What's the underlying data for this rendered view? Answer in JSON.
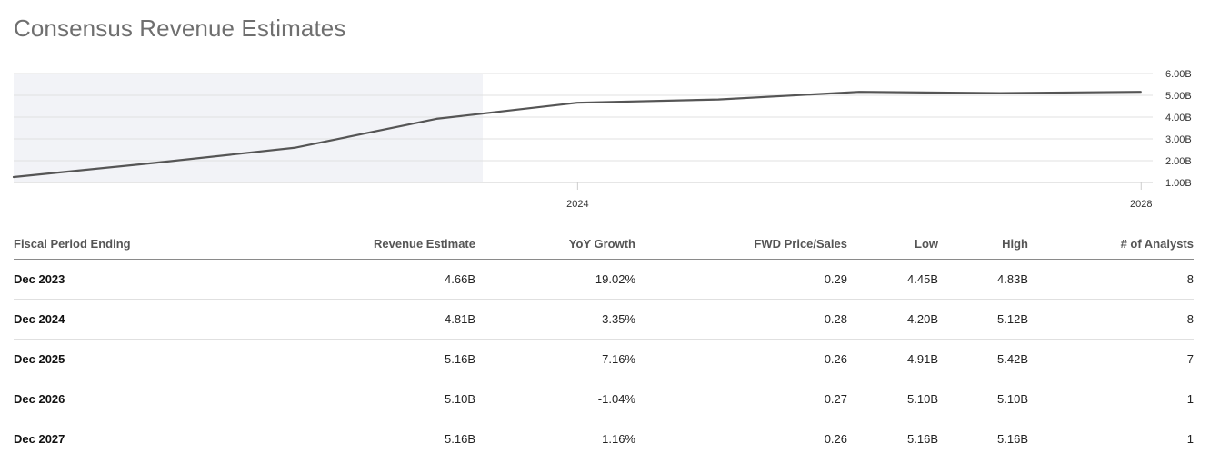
{
  "title": "Consensus Revenue Estimates",
  "chart_data": {
    "type": "line",
    "series": [
      {
        "x": [
          "2019-12-31",
          "2020-12-31",
          "2021-12-31",
          "2022-12-31",
          "2023-12-31",
          "2024-12-31",
          "2025-12-31",
          "2026-12-31",
          "2027-12-31"
        ],
        "values": [
          1.25,
          1.9,
          2.6,
          3.92,
          4.66,
          4.81,
          5.16,
          5.1,
          5.16
        ]
      }
    ],
    "historical_shading_end": "2023-04-30",
    "x_ticks": [
      {
        "date": "2024-01-01",
        "label": "2024"
      },
      {
        "date": "2028-01-01",
        "label": "2028"
      }
    ],
    "y_ticks": [
      1,
      2,
      3,
      4,
      5,
      6
    ],
    "y_tick_labels": [
      "1.00B",
      "2.00B",
      "3.00B",
      "4.00B",
      "5.00B",
      "6.00B"
    ],
    "ylim": [
      1,
      6
    ],
    "grid": true,
    "line_color": "#555555",
    "shade_color": "#f2f3f7",
    "grid_color": "#e0e0e0"
  },
  "table": {
    "headers": [
      "Fiscal Period Ending",
      "Revenue Estimate",
      "YoY Growth",
      "FWD Price/Sales",
      "Low",
      "High",
      "# of Analysts"
    ],
    "rows": [
      [
        "Dec 2023",
        "4.66B",
        "19.02%",
        "0.29",
        "4.45B",
        "4.83B",
        "8"
      ],
      [
        "Dec 2024",
        "4.81B",
        "3.35%",
        "0.28",
        "4.20B",
        "5.12B",
        "8"
      ],
      [
        "Dec 2025",
        "5.16B",
        "7.16%",
        "0.26",
        "4.91B",
        "5.42B",
        "7"
      ],
      [
        "Dec 2026",
        "5.10B",
        "-1.04%",
        "0.27",
        "5.10B",
        "5.10B",
        "1"
      ],
      [
        "Dec 2027",
        "5.16B",
        "1.16%",
        "0.26",
        "5.16B",
        "5.16B",
        "1"
      ]
    ]
  }
}
